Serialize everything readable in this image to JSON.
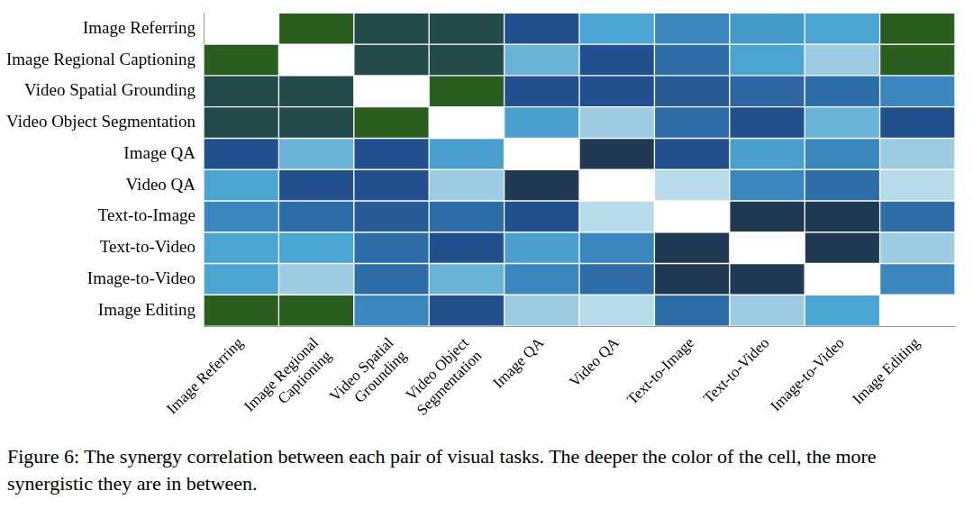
{
  "chart_data": {
    "type": "heatmap",
    "categories": [
      "Image Referring",
      "Image Regional Captioning",
      "Video Spatial Grounding",
      "Video Object Segmentation",
      "Image QA",
      "Video QA",
      "Text-to-Image",
      "Text-to-Video",
      "Image-to-Video",
      "Image Editing"
    ],
    "colors": [
      [
        null,
        "#2a5e1e",
        "#234b4b",
        "#234b4b",
        "#22508e",
        "#4ba5d2",
        "#3a87c0",
        "#4499cb",
        "#4ba5d2",
        "#2a5e1e"
      ],
      [
        "#2a5e1e",
        null,
        "#234b4b",
        "#234b4b",
        "#6ab4d8",
        "#22508e",
        "#2e6ea8",
        "#4ba5d2",
        "#9dcbe3",
        "#2a5e1e"
      ],
      [
        "#234b4b",
        "#234b4b",
        null,
        "#2a5e1e",
        "#22508e",
        "#22508e",
        "#285a96",
        "#2e66a2",
        "#2e6ea8",
        "#3a87c0"
      ],
      [
        "#234b4b",
        "#234b4b",
        "#2a5e1e",
        null,
        "#4a9fcf",
        "#9ccbe2",
        "#2e6ea8",
        "#22508e",
        "#6ab4d8",
        "#22508e"
      ],
      [
        "#22508e",
        "#6ab4d8",
        "#22508e",
        "#4a9fcf",
        null,
        "#1f3a52",
        "#22508e",
        "#4a9fcf",
        "#3a87c0",
        "#9ccbe2"
      ],
      [
        "#4ba5d2",
        "#22508e",
        "#22508e",
        "#9ccbe2",
        "#1f3a52",
        null,
        "#b8dbea",
        "#3a87c0",
        "#2e6ea8",
        "#b8dbea"
      ],
      [
        "#3a87c0",
        "#2e6ea8",
        "#285a96",
        "#2e6ea8",
        "#22508e",
        "#b8dbea",
        null,
        "#1f3a52",
        "#1f3a52",
        "#2e6ea8"
      ],
      [
        "#4ba5d2",
        "#4ba5d2",
        "#2e6ea8",
        "#22508e",
        "#4a9fcf",
        "#3a87c0",
        "#1f3a52",
        null,
        "#1f3a52",
        "#9ccbe2"
      ],
      [
        "#4ba5d2",
        "#9ccbe2",
        "#2e6ea8",
        "#6ab4d8",
        "#3a87c0",
        "#2e6ea8",
        "#1f3a52",
        "#1f3a52",
        null,
        "#3a87c0"
      ],
      [
        "#2a5e1e",
        "#2a5e1e",
        "#3a87c0",
        "#22508e",
        "#9ccbe2",
        "#b8dbea",
        "#2e6ea8",
        "#9ccbe2",
        "#4ba5d2",
        null
      ]
    ],
    "caption": "Figure 6: The synergy correlation between each pair of visual tasks. The deeper the color of the cell, the more synergistic they are in between."
  }
}
